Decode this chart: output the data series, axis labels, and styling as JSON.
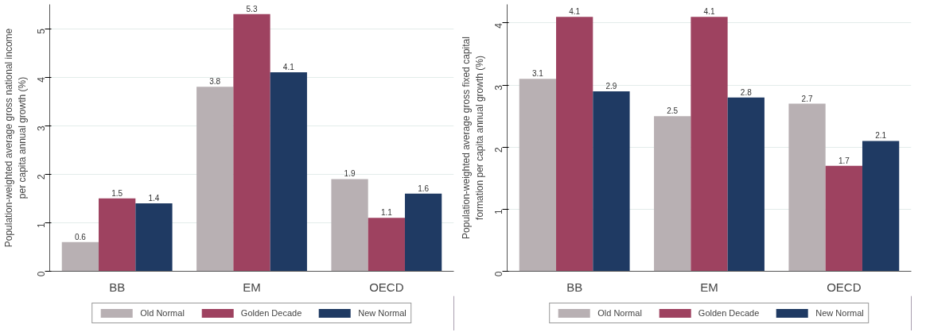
{
  "chart_data": [
    {
      "type": "bar",
      "ylabel": "Population-weighted average gross national income\nper capita annual growth (%)",
      "categories": [
        "BB",
        "EM",
        "OECD"
      ],
      "series": [
        {
          "name": "Old Normal",
          "color": "#b8b0b3",
          "values": [
            0.6,
            3.8,
            1.9
          ]
        },
        {
          "name": "Golden Decade",
          "color": "#9e4260",
          "values": [
            1.5,
            5.3,
            1.1
          ]
        },
        {
          "name": "New Normal",
          "color": "#1f3a63",
          "values": [
            1.4,
            4.1,
            1.6
          ]
        }
      ],
      "ylim": [
        0,
        5.5
      ],
      "yticks": [
        0,
        1,
        2,
        3,
        4,
        5
      ],
      "grid": "y",
      "legend": "bottom",
      "data_labels": true
    },
    {
      "type": "bar",
      "ylabel": "Population-weighted average gross fixed capital\nformation per capita annual growth (%)",
      "categories": [
        "BB",
        "EM",
        "OECD"
      ],
      "series": [
        {
          "name": "Old Normal",
          "color": "#b8b0b3",
          "values": [
            3.1,
            2.5,
            2.7
          ]
        },
        {
          "name": "Golden Decade",
          "color": "#9e4260",
          "values": [
            4.1,
            4.1,
            1.7
          ]
        },
        {
          "name": "New Normal",
          "color": "#1f3a63",
          "values": [
            2.9,
            2.8,
            2.1
          ]
        }
      ],
      "ylim": [
        0,
        4.3
      ],
      "yticks": [
        0,
        1,
        2,
        3,
        4
      ],
      "grid": "y",
      "legend": "bottom",
      "data_labels": true
    }
  ]
}
